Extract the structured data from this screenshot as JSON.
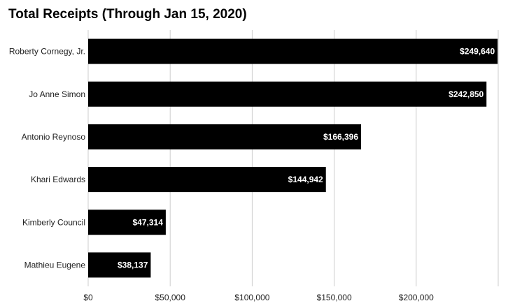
{
  "chart_data": {
    "type": "bar",
    "orientation": "horizontal",
    "title": "Total Receipts (Through Jan 15, 2020)",
    "categories": [
      "Roberty Cornegy, Jr.",
      "Jo Anne Simon",
      "Antonio Reynoso",
      "Khari Edwards",
      "Kimberly Council",
      "Mathieu Eugene"
    ],
    "values": [
      249640,
      242850,
      166396,
      144942,
      47314,
      38137
    ],
    "data_labels": [
      "$249,640",
      "$242,850",
      "$166,396",
      "$144,942",
      "$47,314",
      "$38,137"
    ],
    "xlim": [
      0,
      250000
    ],
    "x_ticks": [
      0,
      50000,
      100000,
      150000,
      200000
    ],
    "x_tick_labels": [
      "$0",
      "$50,000",
      "$100,000",
      "$150,000",
      "$200,000"
    ],
    "xlabel": "",
    "ylabel": "",
    "grid": true,
    "legend": "none",
    "bar_color": "#000000",
    "label_color": "#ffffff",
    "grid_color": "#cccccc"
  }
}
